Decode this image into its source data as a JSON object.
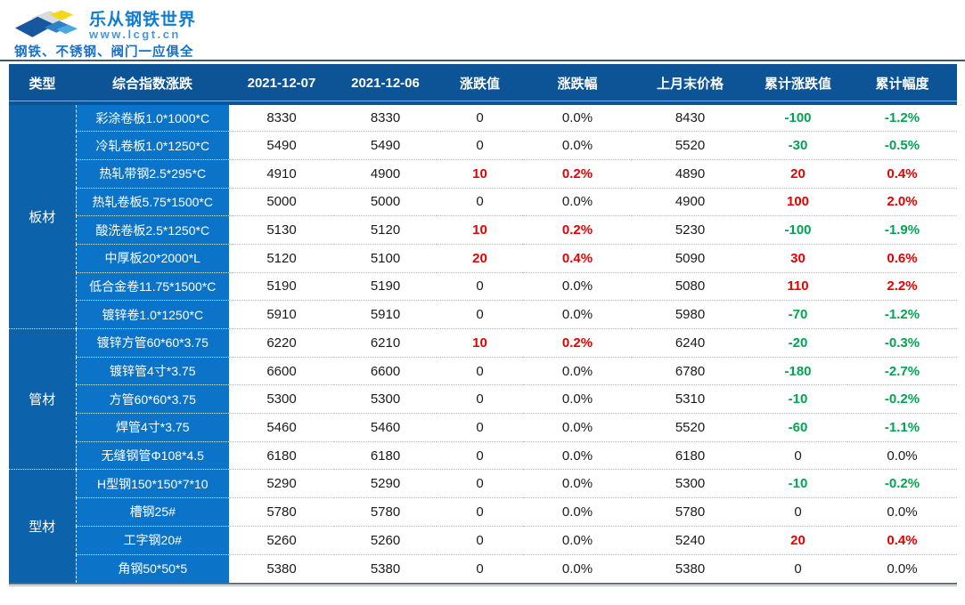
{
  "brand": {
    "title": "乐从钢铁世界",
    "url": "www.lcgt.cn",
    "tagline": "钢铁、不锈钢、阀门一应俱全"
  },
  "colors": {
    "header_bg": "#0d5496",
    "type_col_bg": "#0c63ac",
    "product_col_bg": "#0b74c9",
    "up": "#e60000",
    "down": "#00a551",
    "brand_blue": "#0f7cd4"
  },
  "table": {
    "headers": [
      "类型",
      "综合指数涨跌",
      "2021-12-07",
      "2021-12-06",
      "涨跌值",
      "涨跌幅",
      "上月末价格",
      "累计涨跌值",
      "累计幅度"
    ],
    "groups": [
      {
        "type": "板材",
        "rows": [
          {
            "product": "彩涂卷板1.0*1000*C",
            "p1": "8330",
            "p2": "8330",
            "chg": "0",
            "chg_pct": "0.0%",
            "prev": "8430",
            "cum": "-100",
            "cum_pct": "-1.2%"
          },
          {
            "product": "冷轧卷板1.0*1250*C",
            "p1": "5490",
            "p2": "5490",
            "chg": "0",
            "chg_pct": "0.0%",
            "prev": "5520",
            "cum": "-30",
            "cum_pct": "-0.5%"
          },
          {
            "product": "热轧带钢2.5*295*C",
            "p1": "4910",
            "p2": "4900",
            "chg": "10",
            "chg_pct": "0.2%",
            "prev": "4890",
            "cum": "20",
            "cum_pct": "0.4%"
          },
          {
            "product": "热轧卷板5.75*1500*C",
            "p1": "5000",
            "p2": "5000",
            "chg": "0",
            "chg_pct": "0.0%",
            "prev": "4900",
            "cum": "100",
            "cum_pct": "2.0%"
          },
          {
            "product": "酸洗卷板2.5*1250*C",
            "p1": "5130",
            "p2": "5120",
            "chg": "10",
            "chg_pct": "0.2%",
            "prev": "5230",
            "cum": "-100",
            "cum_pct": "-1.9%"
          },
          {
            "product": "中厚板20*2000*L",
            "p1": "5120",
            "p2": "5100",
            "chg": "20",
            "chg_pct": "0.4%",
            "prev": "5090",
            "cum": "30",
            "cum_pct": "0.6%"
          },
          {
            "product": "低合金卷11.75*1500*C",
            "p1": "5190",
            "p2": "5190",
            "chg": "0",
            "chg_pct": "0.0%",
            "prev": "5080",
            "cum": "110",
            "cum_pct": "2.2%"
          },
          {
            "product": "镀锌卷1.0*1250*C",
            "p1": "5910",
            "p2": "5910",
            "chg": "0",
            "chg_pct": "0.0%",
            "prev": "5980",
            "cum": "-70",
            "cum_pct": "-1.2%"
          }
        ]
      },
      {
        "type": "管材",
        "rows": [
          {
            "product": "镀锌方管60*60*3.75",
            "p1": "6220",
            "p2": "6210",
            "chg": "10",
            "chg_pct": "0.2%",
            "prev": "6240",
            "cum": "-20",
            "cum_pct": "-0.3%"
          },
          {
            "product": "镀锌管4寸*3.75",
            "p1": "6600",
            "p2": "6600",
            "chg": "0",
            "chg_pct": "0.0%",
            "prev": "6780",
            "cum": "-180",
            "cum_pct": "-2.7%"
          },
          {
            "product": "方管60*60*3.75",
            "p1": "5300",
            "p2": "5300",
            "chg": "0",
            "chg_pct": "0.0%",
            "prev": "5310",
            "cum": "-10",
            "cum_pct": "-0.2%"
          },
          {
            "product": "焊管4寸*3.75",
            "p1": "5460",
            "p2": "5460",
            "chg": "0",
            "chg_pct": "0.0%",
            "prev": "5520",
            "cum": "-60",
            "cum_pct": "-1.1%"
          },
          {
            "product": "无缝钢管Φ108*4.5",
            "p1": "6180",
            "p2": "6180",
            "chg": "0",
            "chg_pct": "0.0%",
            "prev": "6180",
            "cum": "0",
            "cum_pct": "0.0%"
          }
        ]
      },
      {
        "type": "型材",
        "rows": [
          {
            "product": "H型钢150*150*7*10",
            "p1": "5290",
            "p2": "5290",
            "chg": "0",
            "chg_pct": "0.0%",
            "prev": "5300",
            "cum": "-10",
            "cum_pct": "-0.2%"
          },
          {
            "product": "槽钢25#",
            "p1": "5780",
            "p2": "5780",
            "chg": "0",
            "chg_pct": "0.0%",
            "prev": "5780",
            "cum": "0",
            "cum_pct": "0.0%"
          },
          {
            "product": "工字钢20#",
            "p1": "5260",
            "p2": "5260",
            "chg": "0",
            "chg_pct": "0.0%",
            "prev": "5240",
            "cum": "20",
            "cum_pct": "0.4%"
          },
          {
            "product": "角钢50*50*5",
            "p1": "5380",
            "p2": "5380",
            "chg": "0",
            "chg_pct": "0.0%",
            "prev": "5380",
            "cum": "0",
            "cum_pct": "0.0%"
          }
        ]
      }
    ]
  }
}
